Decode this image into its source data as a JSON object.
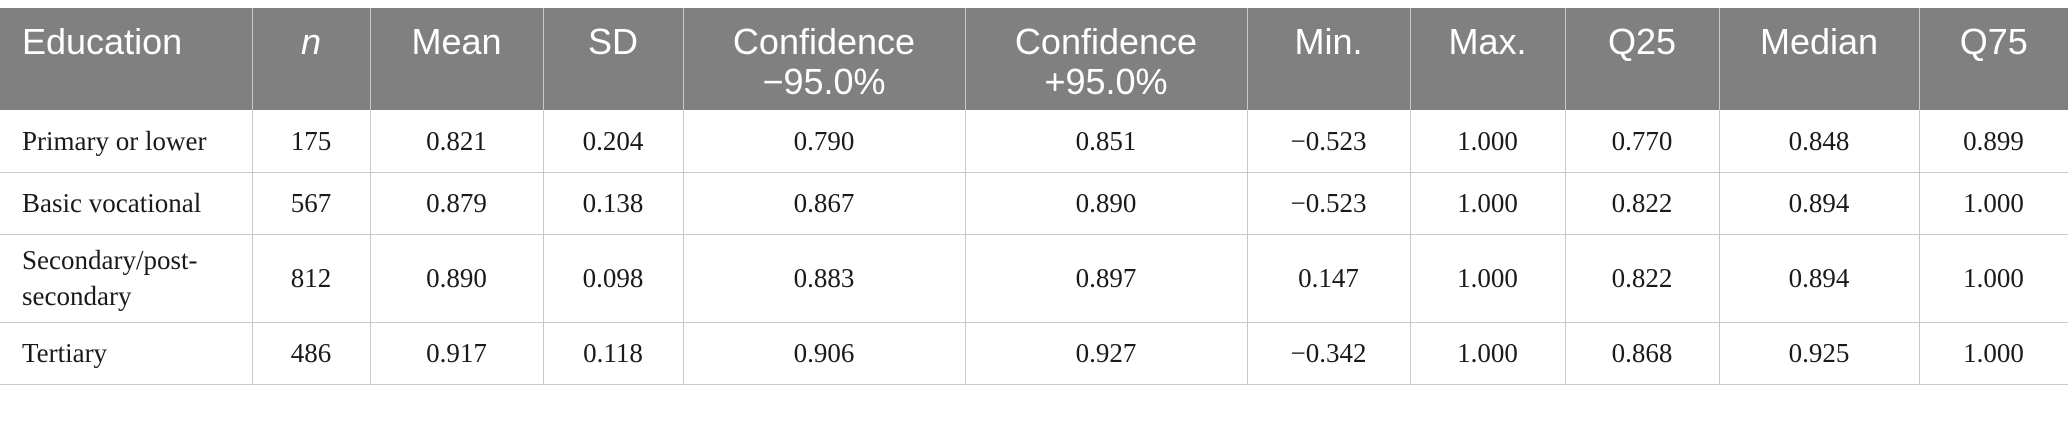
{
  "table": {
    "headers": [
      "Education",
      "n",
      "Mean",
      "SD",
      "Confidence −95.0%",
      "Confidence +95.0%",
      "Min.",
      "Max.",
      "Q25",
      "Median",
      "Q75"
    ],
    "rows": [
      [
        "Primary or lower",
        "175",
        "0.821",
        "0.204",
        "0.790",
        "0.851",
        "−0.523",
        "1.000",
        "0.770",
        "0.848",
        "0.899"
      ],
      [
        "Basic vocational",
        "567",
        "0.879",
        "0.138",
        "0.867",
        "0.890",
        "−0.523",
        "1.000",
        "0.822",
        "0.894",
        "1.000"
      ],
      [
        "Secondary/post-secondary",
        "812",
        "0.890",
        "0.098",
        "0.883",
        "0.897",
        "0.147",
        "1.000",
        "0.822",
        "0.894",
        "1.000"
      ],
      [
        "Tertiary",
        "486",
        "0.917",
        "0.118",
        "0.906",
        "0.927",
        "−0.342",
        "1.000",
        "0.868",
        "0.925",
        "1.000"
      ]
    ]
  }
}
